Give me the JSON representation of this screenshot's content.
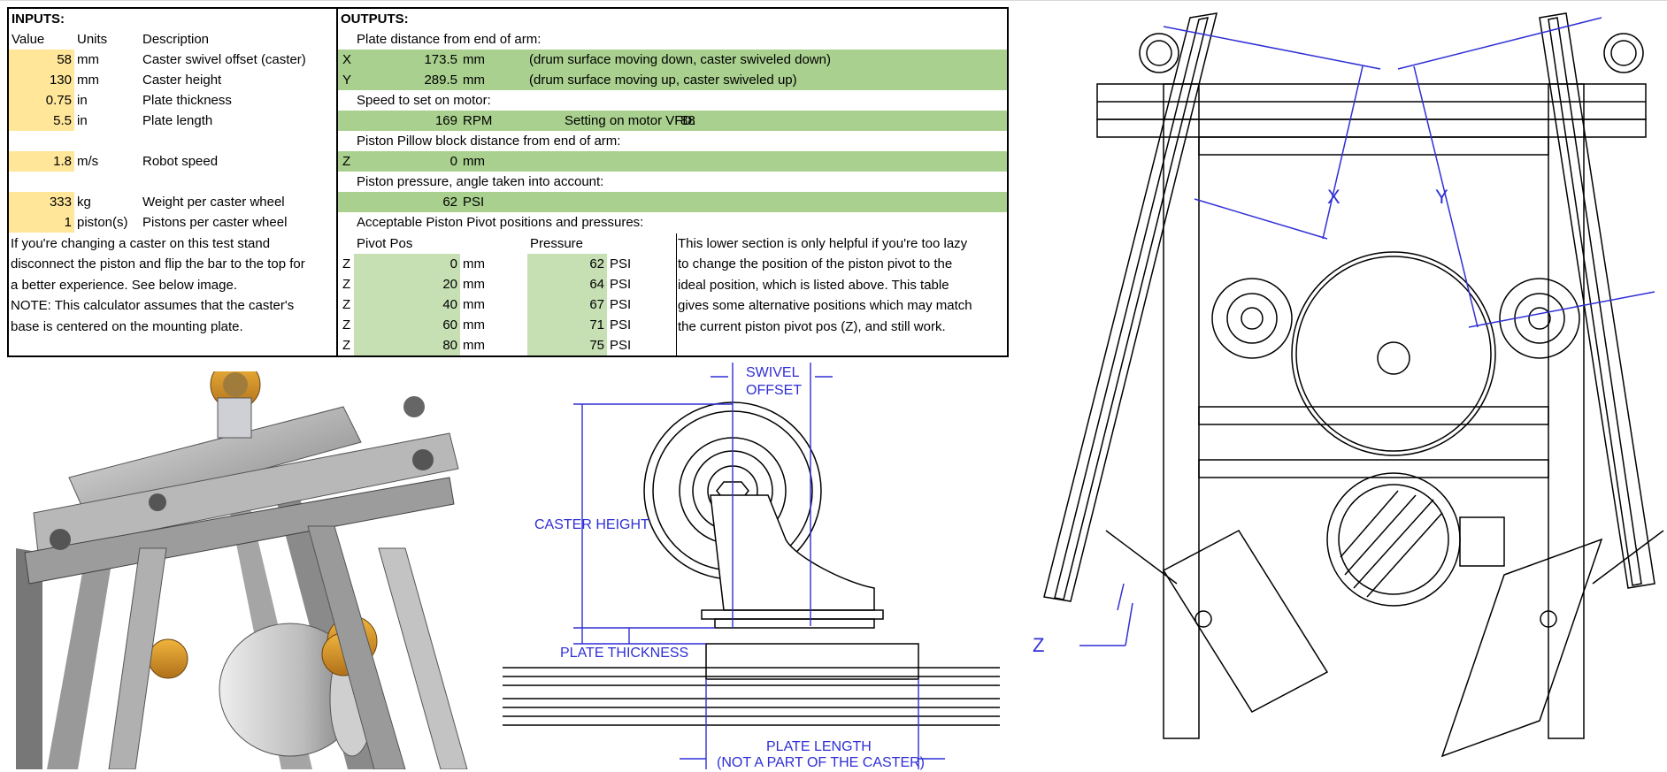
{
  "inputs": {
    "header": "INPUTS:",
    "col_headers": [
      "Value",
      "Units",
      "Description"
    ],
    "rows": [
      {
        "value": "58",
        "unit": "mm",
        "desc": "Caster swivel offset (caster)"
      },
      {
        "value": "130",
        "unit": "mm",
        "desc": "Caster height"
      },
      {
        "value": "0.75",
        "unit": "in",
        "desc": "Plate thickness"
      },
      {
        "value": "5.5",
        "unit": "in",
        "desc": "Plate length"
      },
      {
        "value": "1.8",
        "unit": "m/s",
        "desc": "Robot speed"
      },
      {
        "value": "333",
        "unit": "kg",
        "desc": "Weight per caster wheel"
      },
      {
        "value": "1",
        "unit": "piston(s)",
        "desc": "Pistons per caster wheel"
      }
    ],
    "note_lines": [
      "If you're changing a caster on this test stand",
      "disconnect the piston and flip the bar to the top for",
      "a better experience. See below image.",
      "NOTE: This calculator assumes that the caster's",
      "base is centered on the mounting plate."
    ]
  },
  "outputs": {
    "header": "OUTPUTS:",
    "plate_distance_label": "Plate distance from end of arm:",
    "x": {
      "axis": "X",
      "value": "173.5",
      "unit": "mm",
      "note": "(drum surface moving down, caster swiveled down)"
    },
    "y": {
      "axis": "Y",
      "value": "289.5",
      "unit": "mm",
      "note": "(drum surface moving up, caster swiveled up)"
    },
    "speed_label": "Speed to set on motor:",
    "speed": {
      "value": "169",
      "unit": "RPM",
      "vfd_label": "Setting on motor VFD:",
      "vfd_value": "88"
    },
    "pillow_label": "Piston Pillow block distance from end of arm:",
    "z": {
      "axis": "Z",
      "value": "0",
      "unit": "mm"
    },
    "pressure_label": "Piston pressure, angle taken into account:",
    "pressure": {
      "value": "62",
      "unit": "PSI"
    },
    "acceptable_label": "Acceptable Piston Pivot positions and pressures:",
    "pivot_header": "Pivot Pos",
    "pressure_header": "Pressure",
    "pivot_rows": [
      {
        "axis": "Z",
        "pos": "0",
        "pos_unit": "mm",
        "psi": "62",
        "psi_unit": "PSI"
      },
      {
        "axis": "Z",
        "pos": "20",
        "pos_unit": "mm",
        "psi": "64",
        "psi_unit": "PSI"
      },
      {
        "axis": "Z",
        "pos": "40",
        "pos_unit": "mm",
        "psi": "67",
        "psi_unit": "PSI"
      },
      {
        "axis": "Z",
        "pos": "60",
        "pos_unit": "mm",
        "psi": "71",
        "psi_unit": "PSI"
      },
      {
        "axis": "Z",
        "pos": "80",
        "pos_unit": "mm",
        "psi": "75",
        "psi_unit": "PSI"
      }
    ],
    "lower_note_lines": [
      "This lower section is only helpful if you're too lazy",
      "to change the position of the piston pivot to the",
      "ideal position, which is listed above. This table",
      "gives some alternative positions which may match",
      "the current piston pivot pos (Z), and still work."
    ]
  },
  "caster_diagram": {
    "swivel_offset": [
      "SWIVEL",
      "OFFSET"
    ],
    "caster_height": "CASTER HEIGHT",
    "plate_thickness": "PLATE THICKNESS",
    "plate_length": [
      "PLATE LENGTH",
      "(NOT A PART OF THE CASTER)"
    ]
  },
  "stand_diagram": {
    "labels": {
      "x": "X",
      "y": "Y",
      "z": "Z"
    }
  },
  "colors": {
    "input_fill": "#ffe699",
    "output_fill": "#a9d08e",
    "output_light": "#c6e0b4",
    "dimension_blue": "#2f2fd6"
  }
}
